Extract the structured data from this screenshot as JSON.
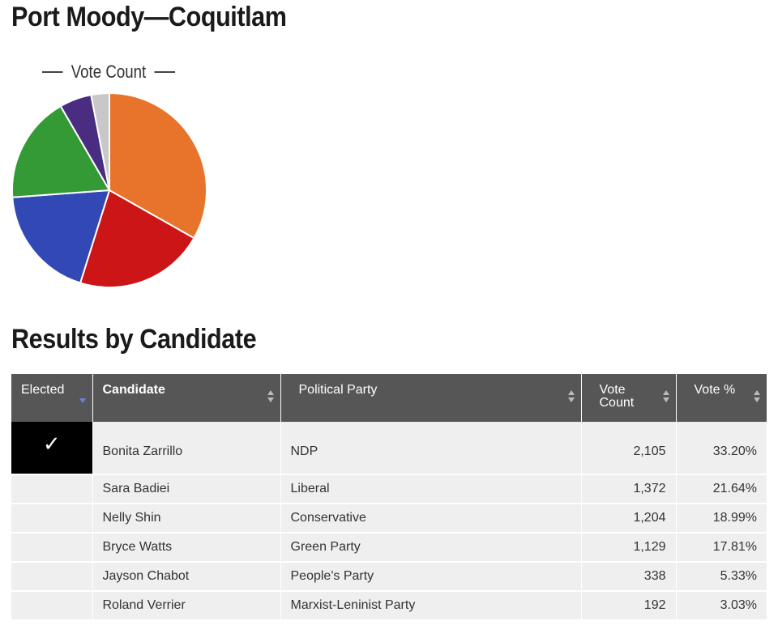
{
  "page": {
    "title": "Port Moody—Coquitlam",
    "results_heading": "Results by Candidate"
  },
  "chart_data": {
    "type": "pie",
    "legend": {
      "label": "Vote Count",
      "placement": "top-left"
    },
    "slices": [
      {
        "label": "Bonita Zarrillo",
        "value": 2105,
        "color": "#e8742b"
      },
      {
        "label": "Sara Badiei",
        "value": 1372,
        "color": "#cc1517"
      },
      {
        "label": "Nelly Shin",
        "value": 1204,
        "color": "#3148b5"
      },
      {
        "label": "Bryce Watts",
        "value": 1129,
        "color": "#339a35"
      },
      {
        "label": "Jayson Chabot",
        "value": 338,
        "color": "#4a2d80"
      },
      {
        "label": "Roland Verrier",
        "value": 192,
        "color": "#c8c8c8"
      }
    ]
  },
  "table": {
    "headers": {
      "elected": "Elected",
      "candidate": "Candidate",
      "party": "Political Party",
      "votes": "Vote Count",
      "pct": "Vote %"
    },
    "elected_mark": "✓",
    "rows": [
      {
        "elected": true,
        "candidate": "Bonita Zarrillo",
        "party": "NDP",
        "votes": "2,105",
        "pct": "33.20%"
      },
      {
        "elected": false,
        "candidate": "Sara Badiei",
        "party": "Liberal",
        "votes": "1,372",
        "pct": "21.64%"
      },
      {
        "elected": false,
        "candidate": "Nelly Shin",
        "party": "Conservative",
        "votes": "1,204",
        "pct": "18.99%"
      },
      {
        "elected": false,
        "candidate": "Bryce Watts",
        "party": "Green Party",
        "votes": "1,129",
        "pct": "17.81%"
      },
      {
        "elected": false,
        "candidate": "Jayson Chabot",
        "party": "People's Party",
        "votes": "338",
        "pct": "5.33%"
      },
      {
        "elected": false,
        "candidate": "Roland Verrier",
        "party": "Marxist-Leninist Party",
        "votes": "192",
        "pct": "3.03%"
      }
    ]
  }
}
